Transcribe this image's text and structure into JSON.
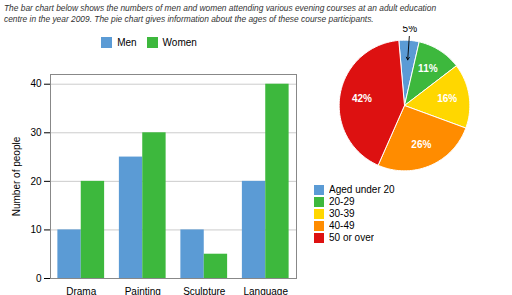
{
  "chart_data": [
    {
      "type": "bar",
      "title": "The bar chart below shows the numbers of men and women attending various evening courses at an adult education\ncentre in the year 2009. The pie chart gives information about the ages of these course participants.",
      "categories": [
        "Drama",
        "Painting",
        "Sculpture",
        "Language"
      ],
      "series": [
        {
          "name": "Men",
          "color": "#5b9bd5",
          "values": [
            10,
            25,
            10,
            20
          ]
        },
        {
          "name": "Women",
          "color": "#3db83d",
          "values": [
            20,
            30,
            5,
            40
          ]
        }
      ],
      "ylabel": "Number of people",
      "ylim": [
        0,
        42
      ],
      "yticks": [
        0,
        10,
        20,
        30,
        40
      ],
      "grid": true,
      "legend": "top"
    },
    {
      "type": "pie",
      "categories": [
        "Aged under 20",
        "20-29",
        "30-39",
        "40-49",
        "50 or over"
      ],
      "values": [
        5,
        11,
        16,
        26,
        42
      ],
      "value_labels": [
        "5%",
        "11%",
        "16%",
        "26%",
        "42%"
      ],
      "data_labels": true,
      "colors": [
        "#5b9bd5",
        "#3db83d",
        "#ffd700",
        "#ff8c00",
        "#dd1111"
      ],
      "legend": "bottom"
    }
  ]
}
